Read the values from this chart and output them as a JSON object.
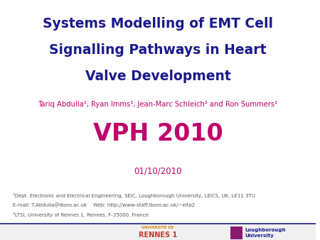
{
  "title_line1": "Systems Modelling of EMT Cell",
  "title_line2": "Signalling Pathways in Heart",
  "title_line3": "Valve Development",
  "title_color": "#1a1a8c",
  "authors": "Tariq Abdulla¹, Ryan Imms¹, Jean-Marc Schleich² and Ron Summers¹",
  "authors_color": "#c0006a",
  "conference": "VPH 2010",
  "conference_color": "#c0006a",
  "date": "01/10/2010",
  "date_color": "#c0006a",
  "footnote1": "¹Dept. Electronic and Electrical Engineering, SEIC, Loughborough University, LEICS, UK, LE11 3TU",
  "footnote2": "E-mail: T.Abdulla@lboro.ac.uk    Web: http://www-staff.lboro.ac.uk/~elta2",
  "footnote3": "²LTSI, University of Rennes 1, Rennes, F-35000, France",
  "footnote_color": "#555555",
  "background_color": "#ffffff",
  "separator_color": "#1a1a8c",
  "footer_bg": "#f0f0f0",
  "lboro_rect_color": "#8b1a6e",
  "lboro_text_color": "#1a1a8c",
  "rennes_title_color": "#d4860a",
  "rennes_name_color": "#c0392b"
}
